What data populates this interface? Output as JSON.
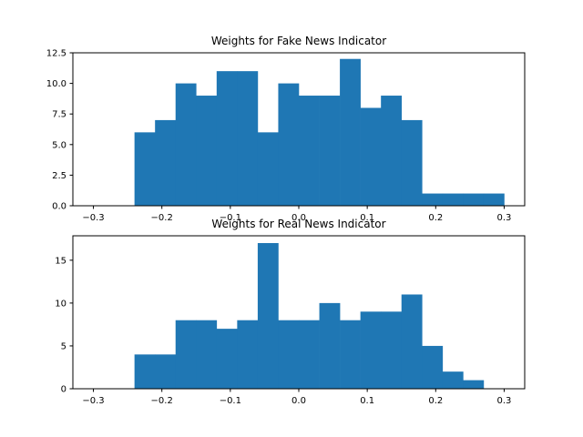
{
  "chart_data": [
    {
      "type": "bar",
      "title": "Weights for Fake News Indicator",
      "xlabel": "",
      "ylabel": "",
      "xlim": [
        -0.33,
        0.33
      ],
      "ylim": [
        0,
        12.5
      ],
      "bin_edges": [
        -0.24,
        -0.21,
        -0.18,
        -0.15,
        -0.12,
        -0.09,
        -0.06,
        -0.03,
        0.0,
        0.03,
        0.06,
        0.09,
        0.12,
        0.15,
        0.18,
        0.21,
        0.24,
        0.27,
        0.3
      ],
      "values": [
        6,
        7,
        10,
        9,
        11,
        11,
        6,
        10,
        9,
        9,
        12,
        8,
        9,
        7,
        1,
        1,
        1,
        1
      ],
      "x_ticks": [
        -0.3,
        -0.2,
        -0.1,
        0.0,
        0.1,
        0.2,
        0.3
      ],
      "x_tick_labels": [
        "−0.3",
        "−0.2",
        "−0.1",
        "0.0",
        "0.1",
        "0.2",
        "0.3"
      ],
      "y_ticks": [
        0,
        2.5,
        5,
        7.5,
        10,
        12.5
      ],
      "y_tick_labels": [
        "0.0",
        "2.5",
        "5.0",
        "7.5",
        "10.0",
        "12.5"
      ],
      "color": "#1f77b4",
      "grid": false
    },
    {
      "type": "bar",
      "title": "Weights for Real News Indicator",
      "xlabel": "",
      "ylabel": "",
      "xlim": [
        -0.33,
        0.33
      ],
      "ylim": [
        0,
        17.85
      ],
      "bin_edges": [
        -0.24,
        -0.21,
        -0.18,
        -0.15,
        -0.12,
        -0.09,
        -0.06,
        -0.03,
        0.0,
        0.03,
        0.06,
        0.09,
        0.12,
        0.15,
        0.18,
        0.21,
        0.24,
        0.27,
        0.3
      ],
      "values": [
        4,
        4,
        8,
        8,
        7,
        8,
        17,
        8,
        8,
        10,
        8,
        9,
        9,
        11,
        5,
        2,
        1,
        0
      ],
      "x_ticks": [
        -0.3,
        -0.2,
        -0.1,
        0.0,
        0.1,
        0.2,
        0.3
      ],
      "x_tick_labels": [
        "−0.3",
        "−0.2",
        "−0.1",
        "0.0",
        "0.1",
        "0.2",
        "0.3"
      ],
      "y_ticks": [
        0,
        5,
        10,
        15
      ],
      "y_tick_labels": [
        "0",
        "5",
        "10",
        "15"
      ],
      "color": "#1f77b4",
      "grid": false
    }
  ]
}
